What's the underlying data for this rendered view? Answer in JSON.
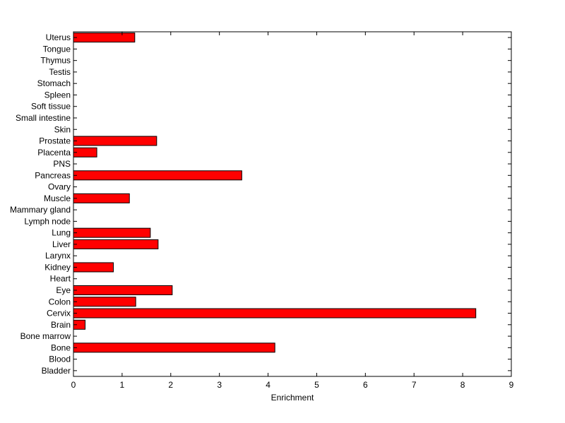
{
  "chart_data": {
    "type": "bar",
    "orientation": "horizontal",
    "categories": [
      "Bladder",
      "Blood",
      "Bone",
      "Bone marrow",
      "Brain",
      "Cervix",
      "Colon",
      "Eye",
      "Heart",
      "Kidney",
      "Larynx",
      "Liver",
      "Lung",
      "Lymph node",
      "Mammary gland",
      "Muscle",
      "Ovary",
      "Pancreas",
      "PNS",
      "Placenta",
      "Prostate",
      "Skin",
      "Small intestine",
      "Soft tissue",
      "Spleen",
      "Stomach",
      "Testis",
      "Thymus",
      "Tongue",
      "Uterus"
    ],
    "values": [
      0,
      0,
      4.14,
      0,
      0.24,
      8.27,
      1.28,
      2.03,
      0,
      0.82,
      0,
      1.74,
      1.58,
      0,
      0,
      1.15,
      0,
      3.46,
      0,
      0.48,
      1.71,
      0,
      0,
      0,
      0,
      0,
      0,
      0,
      0,
      1.26
    ],
    "xlabel": "Enrichment",
    "ylabel": "",
    "title": "",
    "xlim": [
      0,
      9
    ],
    "xticks": [
      0,
      1,
      2,
      3,
      4,
      5,
      6,
      7,
      8,
      9
    ],
    "grid": false,
    "legend": "none",
    "bar_color": "#ff0000",
    "edge_color": "#000000"
  }
}
